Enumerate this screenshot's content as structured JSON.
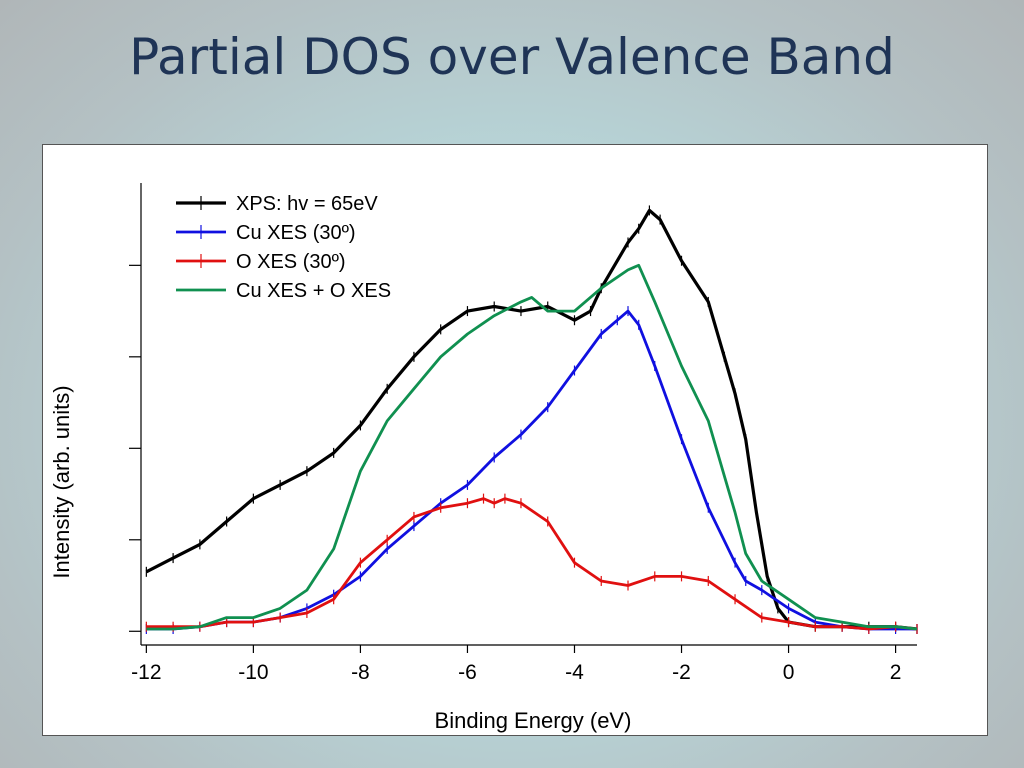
{
  "slide": {
    "title": "Partial DOS over Valence Band"
  },
  "chart_data": {
    "type": "line",
    "title": "",
    "xlabel": "Binding Energy (eV)",
    "ylabel": "Intensity (arb. units)",
    "xlim": [
      -12.1,
      2.4
    ],
    "ylim": [
      0,
      1.0
    ],
    "x_ticks": [
      -12,
      -10,
      -8,
      -6,
      -4,
      -2,
      0,
      2
    ],
    "x_tick_labels": [
      "-12",
      "-10",
      "-8",
      "-6",
      "-4",
      "-2",
      "0",
      "2"
    ],
    "y_ticks": [
      0.0,
      0.2,
      0.4,
      0.6,
      0.8
    ],
    "y_tick_labels": [
      "",
      "",
      "",
      "",
      ""
    ],
    "grid": false,
    "legend_position": "top-left",
    "series": [
      {
        "name": "XPS: hv = 65eV",
        "color": "#000000",
        "markers": true,
        "x": [
          -12.0,
          -11.5,
          -11.0,
          -10.5,
          -10.0,
          -9.5,
          -9.0,
          -8.5,
          -8.0,
          -7.5,
          -7.0,
          -6.5,
          -6.0,
          -5.5,
          -5.0,
          -4.5,
          -4.0,
          -3.7,
          -3.5,
          -3.0,
          -2.8,
          -2.6,
          -2.4,
          -2.0,
          -1.5,
          -1.2,
          -1.0,
          -0.8,
          -0.6,
          -0.4,
          -0.2,
          0.0,
          0.5,
          1.0,
          1.5,
          2.0,
          2.4
        ],
        "y": [
          0.13,
          0.16,
          0.19,
          0.24,
          0.29,
          0.32,
          0.35,
          0.39,
          0.45,
          0.53,
          0.6,
          0.66,
          0.7,
          0.71,
          0.7,
          0.71,
          0.68,
          0.7,
          0.75,
          0.85,
          0.88,
          0.92,
          0.9,
          0.81,
          0.72,
          0.6,
          0.52,
          0.42,
          0.26,
          0.12,
          0.05,
          0.02,
          0.01,
          0.01,
          0.01,
          0.01,
          0.005
        ]
      },
      {
        "name": "Cu XES (30º)",
        "color": "#1010e0",
        "markers": true,
        "x": [
          -12.0,
          -11.5,
          -11.0,
          -10.5,
          -10.0,
          -9.5,
          -9.0,
          -8.5,
          -8.0,
          -7.5,
          -7.0,
          -6.5,
          -6.0,
          -5.5,
          -5.0,
          -4.5,
          -4.0,
          -3.5,
          -3.2,
          -3.0,
          -2.8,
          -2.5,
          -2.0,
          -1.5,
          -1.0,
          -0.8,
          -0.5,
          0.0,
          0.5,
          1.0,
          1.5,
          2.0,
          2.4
        ],
        "y": [
          0.005,
          0.005,
          0.01,
          0.02,
          0.02,
          0.03,
          0.05,
          0.08,
          0.12,
          0.18,
          0.23,
          0.28,
          0.32,
          0.38,
          0.43,
          0.49,
          0.57,
          0.65,
          0.68,
          0.7,
          0.67,
          0.58,
          0.42,
          0.27,
          0.15,
          0.11,
          0.09,
          0.05,
          0.02,
          0.01,
          0.005,
          0.005,
          0.005
        ]
      },
      {
        "name": "O XES (30º)",
        "color": "#e01010",
        "markers": true,
        "x": [
          -12.0,
          -11.5,
          -11.0,
          -10.5,
          -10.0,
          -9.5,
          -9.0,
          -8.5,
          -8.0,
          -7.5,
          -7.0,
          -6.5,
          -6.0,
          -5.7,
          -5.5,
          -5.3,
          -5.0,
          -4.5,
          -4.0,
          -3.5,
          -3.0,
          -2.5,
          -2.0,
          -1.5,
          -1.0,
          -0.5,
          0.0,
          0.5,
          1.0,
          1.5,
          2.0,
          2.4
        ],
        "y": [
          0.01,
          0.01,
          0.01,
          0.02,
          0.02,
          0.03,
          0.04,
          0.07,
          0.15,
          0.2,
          0.25,
          0.27,
          0.28,
          0.29,
          0.28,
          0.29,
          0.28,
          0.24,
          0.15,
          0.11,
          0.1,
          0.12,
          0.12,
          0.11,
          0.07,
          0.03,
          0.02,
          0.01,
          0.01,
          0.005,
          0.01,
          0.005
        ]
      },
      {
        "name": "Cu XES + O XES",
        "color": "#109050",
        "markers": false,
        "x": [
          -12.0,
          -11.5,
          -11.0,
          -10.5,
          -10.0,
          -9.5,
          -9.0,
          -8.5,
          -8.0,
          -7.5,
          -7.0,
          -6.5,
          -6.0,
          -5.5,
          -5.0,
          -4.8,
          -4.5,
          -4.0,
          -3.5,
          -3.0,
          -2.8,
          -2.5,
          -2.0,
          -1.5,
          -1.2,
          -1.0,
          -0.8,
          -0.5,
          0.0,
          0.5,
          1.0,
          1.5,
          2.0,
          2.4
        ],
        "y": [
          0.005,
          0.005,
          0.01,
          0.03,
          0.03,
          0.05,
          0.09,
          0.18,
          0.35,
          0.46,
          0.53,
          0.6,
          0.65,
          0.69,
          0.72,
          0.73,
          0.7,
          0.7,
          0.75,
          0.79,
          0.8,
          0.72,
          0.58,
          0.46,
          0.34,
          0.26,
          0.17,
          0.11,
          0.07,
          0.03,
          0.02,
          0.01,
          0.01,
          0.005
        ]
      }
    ]
  }
}
